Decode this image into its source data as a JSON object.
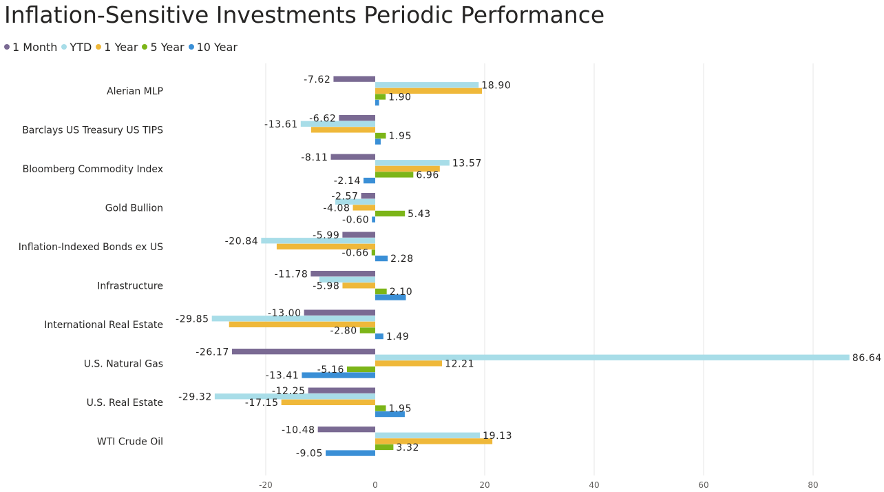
{
  "chart_data": {
    "type": "bar",
    "orientation": "horizontal",
    "title": "Inflation-Sensitive Investments Periodic Performance",
    "categories": [
      "Alerian MLP",
      "Barclays US Treasury US TIPS",
      "Bloomberg Commodity Index",
      "Gold Bullion",
      "Inflation-Indexed Bonds ex US",
      "Infrastructure",
      "International Real Estate",
      "U.S. Natural Gas",
      "U.S. Real Estate",
      "WTI Crude Oil"
    ],
    "series": [
      {
        "name": "1 Month",
        "color": "#7a6a93",
        "values": [
          -7.62,
          -6.62,
          -8.11,
          -2.57,
          -5.99,
          -11.78,
          -13.0,
          -26.17,
          -12.25,
          -10.48
        ]
      },
      {
        "name": "YTD",
        "color": "#a8dde8",
        "values": [
          18.9,
          -13.61,
          13.57,
          -7.3,
          -20.84,
          -10.2,
          -29.85,
          86.64,
          -29.32,
          19.13
        ]
      },
      {
        "name": "1 Year",
        "color": "#efb83a",
        "values": [
          19.5,
          -11.7,
          11.8,
          -4.08,
          -18.0,
          -5.98,
          -26.7,
          12.21,
          -17.15,
          21.4
        ]
      },
      {
        "name": "5 Year",
        "color": "#7cb518",
        "values": [
          1.9,
          1.95,
          6.96,
          5.43,
          -0.66,
          2.1,
          -2.8,
          -5.16,
          1.95,
          3.32
        ]
      },
      {
        "name": "10 Year",
        "color": "#3a8fd6",
        "values": [
          0.7,
          1.0,
          -2.14,
          -0.6,
          2.28,
          5.6,
          1.49,
          -13.41,
          5.4,
          -9.05
        ]
      }
    ],
    "data_labels": [
      [
        "-7.62",
        "18.90",
        "",
        "1.90",
        ""
      ],
      [
        "-6.62",
        "-13.61",
        "",
        "1.95",
        ""
      ],
      [
        "-8.11",
        "13.57",
        "",
        "6.96",
        "-2.14"
      ],
      [
        "-2.57",
        "",
        "-4.08",
        "5.43",
        "-0.60"
      ],
      [
        "-5.99",
        "-20.84",
        "",
        "-0.66",
        "2.28"
      ],
      [
        "-11.78",
        "",
        "-5.98",
        "2.10",
        ""
      ],
      [
        "-13.00",
        "-29.85",
        "",
        "-2.80",
        "1.49"
      ],
      [
        "-26.17",
        "86.64",
        "12.21",
        "-5.16",
        "-13.41"
      ],
      [
        "-12.25",
        "-29.32",
        "-17.15",
        "1.95",
        ""
      ],
      [
        "-10.48",
        "19.13",
        "",
        "3.32",
        "-9.05"
      ]
    ],
    "xlim": [
      -30,
      88
    ],
    "xticks": [
      -20,
      0,
      20,
      40,
      60,
      80
    ],
    "xtick_labels": [
      "-20",
      "0",
      "20",
      "40",
      "60",
      "80"
    ],
    "grid": true,
    "legend": "top-left"
  }
}
